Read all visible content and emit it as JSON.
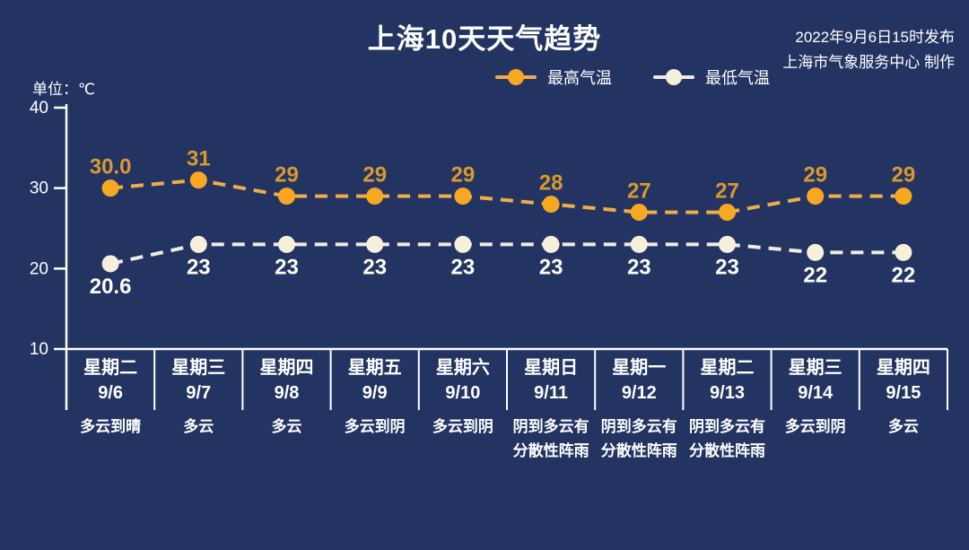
{
  "title": "上海10天天气趋势",
  "publisher": {
    "line1": "2022年9月6日15时发布",
    "line2": "上海市气象服务中心 制作"
  },
  "unit_label": "单位：℃",
  "colors": {
    "background": "#233463",
    "axis": "#ffffff",
    "divider": "#ffffff",
    "tick_label": "#ffffff"
  },
  "chart_data": {
    "type": "line",
    "title": "上海10天天气趋势",
    "ylabel": "单位：℃",
    "ylim": [
      10,
      40
    ],
    "yticks": [
      40,
      30,
      20,
      10
    ],
    "grid": false,
    "legend_position": "top",
    "line_style": "dashed",
    "categories": [
      {
        "weekday": "星期二",
        "date": "9/6",
        "condition": [
          "多云到晴"
        ]
      },
      {
        "weekday": "星期三",
        "date": "9/7",
        "condition": [
          "多云"
        ]
      },
      {
        "weekday": "星期四",
        "date": "9/8",
        "condition": [
          "多云"
        ]
      },
      {
        "weekday": "星期五",
        "date": "9/9",
        "condition": [
          "多云到阴"
        ]
      },
      {
        "weekday": "星期六",
        "date": "9/10",
        "condition": [
          "多云到阴"
        ]
      },
      {
        "weekday": "星期日",
        "date": "9/11",
        "condition": [
          "阴到多云有",
          "分散性阵雨"
        ]
      },
      {
        "weekday": "星期一",
        "date": "9/12",
        "condition": [
          "阴到多云有",
          "分散性阵雨"
        ]
      },
      {
        "weekday": "星期二",
        "date": "9/13",
        "condition": [
          "阴到多云有",
          "分散性阵雨"
        ]
      },
      {
        "weekday": "星期三",
        "date": "9/14",
        "condition": [
          "多云到阴"
        ]
      },
      {
        "weekday": "星期四",
        "date": "9/15",
        "condition": [
          "多云"
        ]
      }
    ],
    "series": [
      {
        "name": "最高气温",
        "values": [
          30.0,
          31,
          29,
          29,
          29,
          28,
          27,
          27,
          29,
          29
        ],
        "labels": [
          "30.0",
          "31",
          "29",
          "29",
          "29",
          "28",
          "27",
          "27",
          "29",
          "29"
        ],
        "line_color": "#eead4a",
        "marker_color": "#f7a820",
        "label_color": "#d9992e",
        "label_side": "above"
      },
      {
        "name": "最低气温",
        "values": [
          20.6,
          23,
          23,
          23,
          23,
          23,
          23,
          23,
          22,
          22
        ],
        "labels": [
          "20.6",
          "23",
          "23",
          "23",
          "23",
          "23",
          "23",
          "23",
          "22",
          "22"
        ],
        "line_color": "#f1ece1",
        "marker_color": "#f6efda",
        "label_color": "#ffffff",
        "label_side": "below"
      }
    ]
  }
}
